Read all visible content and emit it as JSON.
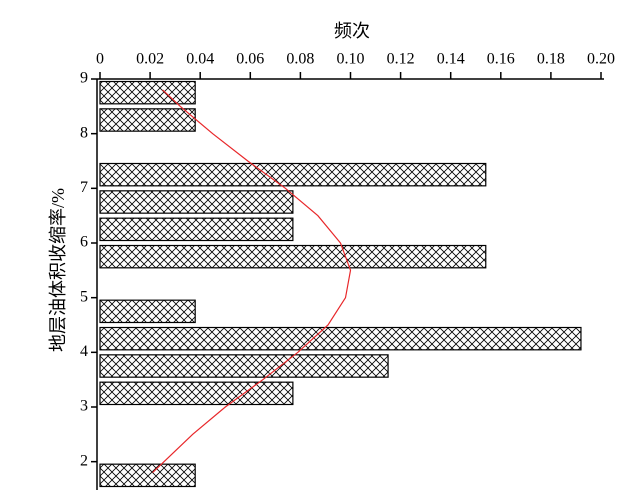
{
  "chart_data": {
    "type": "histogram",
    "orientation": "horizontal",
    "title": "频次",
    "y_label": "地层油体积收缩率/%",
    "bins": [
      1.5,
      2.0,
      2.5,
      3.0,
      3.5,
      4.0,
      4.5,
      5.0,
      5.5,
      6.0,
      6.5,
      7.0,
      7.5,
      8.0,
      8.5,
      9.0
    ],
    "values": [
      0.038,
      0,
      0,
      0.077,
      0.115,
      0.192,
      0.038,
      0,
      0.154,
      0.077,
      0.077,
      0.154,
      0,
      0.038,
      0.038
    ],
    "color": "#000000",
    "curve": {
      "color": "#e8272a",
      "y": [
        1.8,
        2.5,
        3.0,
        3.5,
        4.0,
        4.5,
        5.0,
        5.5,
        6.0,
        6.5,
        7.0,
        7.5,
        8.0,
        8.5,
        8.8
      ],
      "values": [
        0.021,
        0.037,
        0.05,
        0.065,
        0.079,
        0.091,
        0.098,
        0.1,
        0.096,
        0.087,
        0.074,
        0.059,
        0.045,
        0.032,
        0.025
      ]
    },
    "xlim": [
      0,
      0.2
    ],
    "xticks": [
      0,
      0.02,
      0.04,
      0.06,
      0.08,
      {
        "value": 0.1,
        "label": "0.10"
      },
      0.12,
      0.14,
      0.16,
      0.18,
      {
        "value": 0.2,
        "label": "0.20"
      }
    ],
    "ylim": [
      1.5,
      9
    ],
    "yticks": [
      2,
      3,
      4,
      5,
      6,
      7,
      8,
      9
    ]
  }
}
